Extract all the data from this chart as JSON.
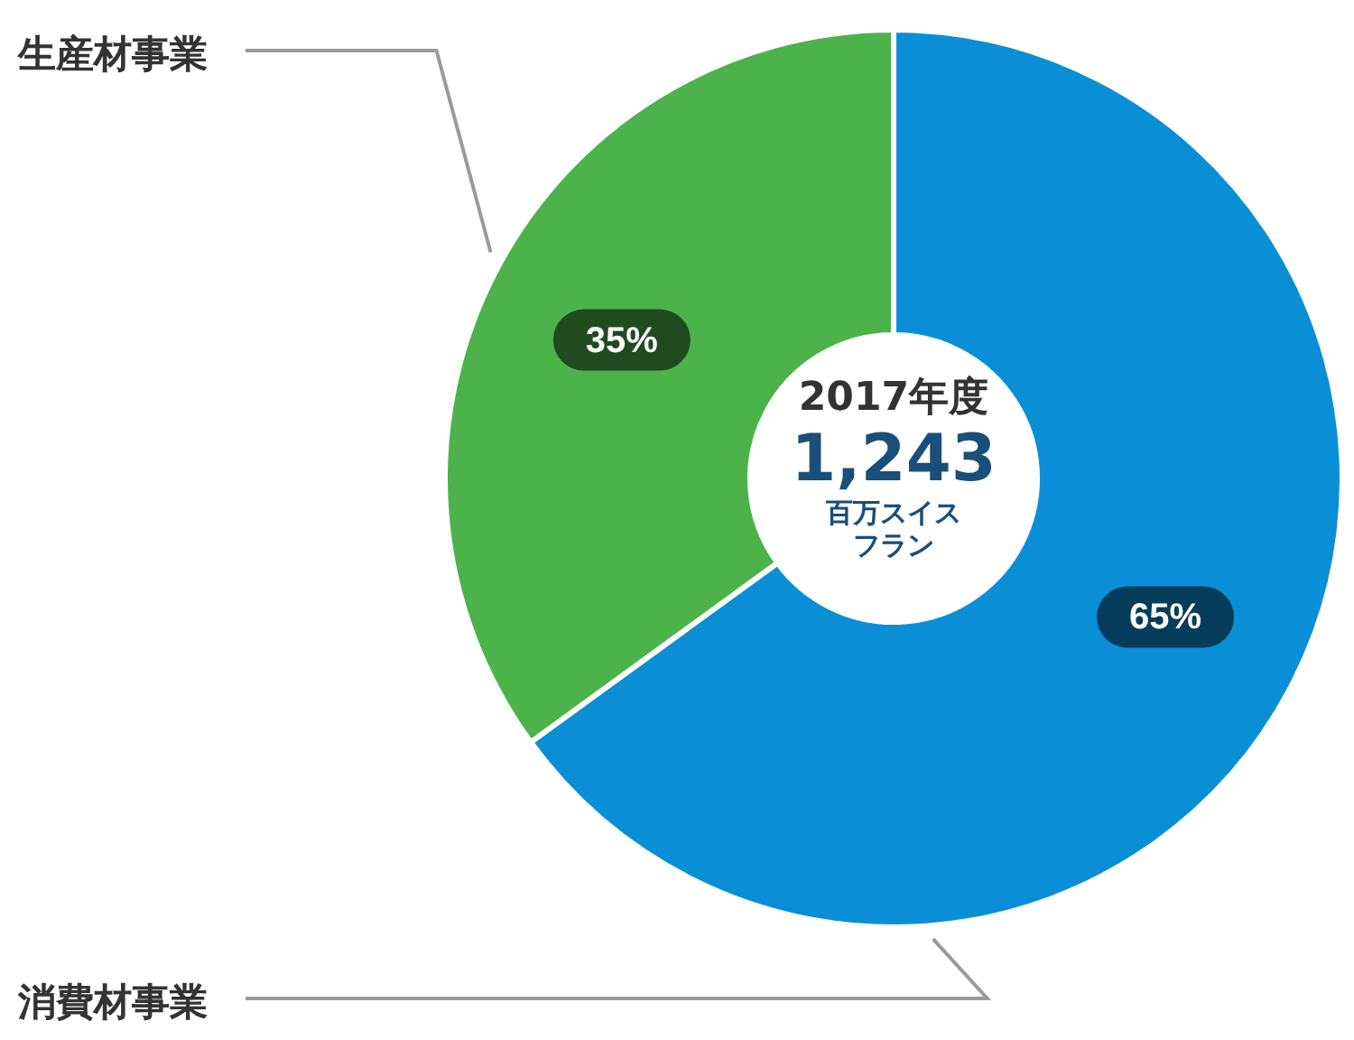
{
  "chart_data": {
    "type": "donut",
    "categories": [
      "消費材事業",
      "生産材事業"
    ],
    "values": [
      65,
      35
    ],
    "colors": [
      "#0a8fd6",
      "#4cb34a"
    ],
    "value_labels": [
      "65%",
      "35%"
    ],
    "annotations": [
      "2017年度",
      "1,243",
      "百万スイスフラン"
    ]
  }
}
